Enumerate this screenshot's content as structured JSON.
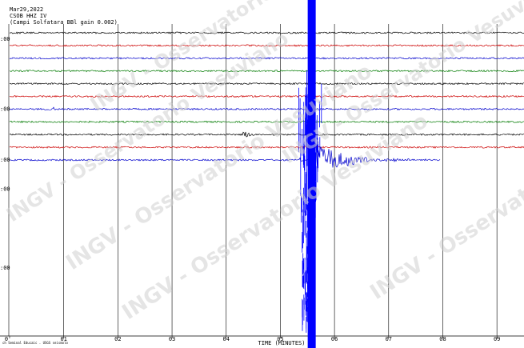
{
  "header": {
    "date": "Mar29,2022",
    "station": "CSOB HHZ IV",
    "location": "(Campi Solfatara BBl gain 0.002)"
  },
  "footer": {
    "left_text": "ch Seminal Educaic  .  USGS seismolo"
  },
  "watermark": {
    "text": "INGV - Osservatorio Vesuviano",
    "color": "#cfcfcf"
  },
  "chart_data": {
    "type": "line",
    "xlabel": "TIME (MINUTES)",
    "x_ticks": [
      "0",
      "01",
      "02",
      "03",
      "04",
      "05",
      "06",
      "07",
      "08",
      "09"
    ],
    "xlim": [
      0,
      9.5
    ],
    "y_ticks": [
      {
        "label": ":00",
        "row": 0.5
      },
      {
        "label": ":00",
        "row": 6.0
      },
      {
        "label": ":00",
        "row": 10.0
      },
      {
        "label": ":00",
        "row": 12.3
      },
      {
        "label": ":00",
        "row": 18.5
      }
    ],
    "colors": [
      "#000000",
      "#cc0000",
      "#0000cc",
      "#007a00"
    ],
    "traces": [
      {
        "color": "#000000",
        "events": []
      },
      {
        "color": "#cc0000",
        "events": []
      },
      {
        "color": "#0000cc",
        "events": []
      },
      {
        "color": "#007a00",
        "events": []
      },
      {
        "color": "#000000",
        "events": []
      },
      {
        "color": "#cc0000",
        "events": []
      },
      {
        "color": "#0000cc",
        "events": [
          {
            "x": 0.8,
            "amp": 3,
            "dur": 0.15
          }
        ]
      },
      {
        "color": "#007a00",
        "events": []
      },
      {
        "color": "#000000",
        "events": [
          {
            "x": 4.3,
            "amp": 9,
            "dur": 0.25
          }
        ]
      },
      {
        "color": "#cc0000",
        "events": [
          {
            "x": 5.4,
            "amp": 5,
            "dur": 0.2
          }
        ]
      },
      {
        "color": "#0000cc",
        "events": [
          {
            "x": 5.35,
            "amp": 5,
            "dur": 0.12
          }
        ],
        "end_x": 7.95
      }
    ],
    "main_event": {
      "x": 5.55,
      "color": "#0000ff",
      "row": 10
    },
    "minute_gridlines": true,
    "grid": true
  }
}
